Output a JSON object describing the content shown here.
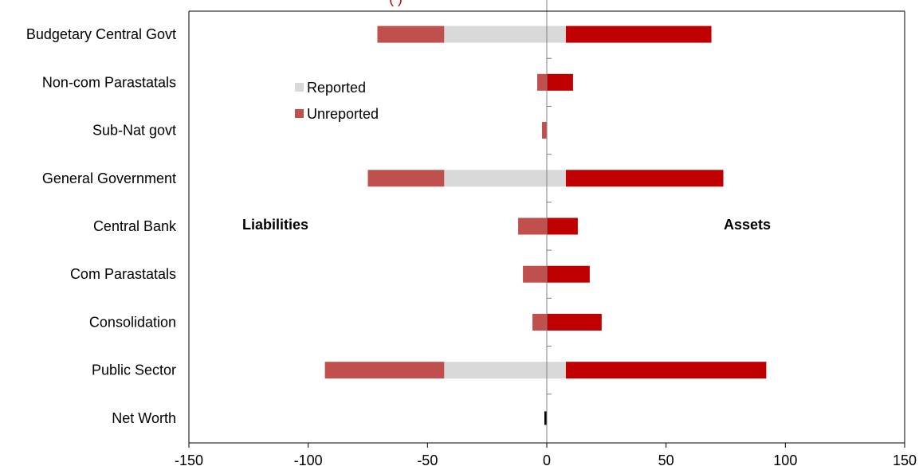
{
  "chart_data": {
    "type": "bar",
    "orientation": "horizontal-diverging",
    "title_fragment": "(                              )",
    "categories": [
      "Budgetary Central Govt",
      "Non-com Parastatals",
      "Sub-Nat govt",
      "General Government",
      "Central Bank",
      "Com Parastatals",
      "Consolidation",
      "Public Sector",
      "Net Worth"
    ],
    "series": [
      {
        "name": "Reported",
        "side": "liabilities",
        "color": "#d9d9d9",
        "values": [
          -43,
          0,
          0,
          -43,
          0,
          0,
          0,
          -43,
          0
        ]
      },
      {
        "name": "Unreported",
        "side": "liabilities",
        "color": "#c0504d",
        "values": [
          -28,
          -4,
          -2,
          -32,
          -12,
          -10,
          -6,
          -50,
          0
        ]
      },
      {
        "name": "Reported",
        "side": "assets",
        "color": "#d9d9d9",
        "values": [
          8,
          0,
          0,
          8,
          0,
          0,
          0,
          8,
          0
        ]
      },
      {
        "name": "Unreported",
        "side": "assets",
        "color": "#c00000",
        "values": [
          61,
          11,
          0,
          66,
          13,
          18,
          23,
          84,
          0
        ]
      },
      {
        "name": "Net Worth",
        "side": "net",
        "color": "#000000",
        "values": [
          0,
          0,
          0,
          0,
          0,
          0,
          0,
          0,
          -1
        ]
      }
    ],
    "legend": {
      "placement": "upper-left-inside",
      "items": [
        {
          "label": "Reported",
          "color": "#d9d9d9"
        },
        {
          "label": "Unreported",
          "color": "#c0504d"
        }
      ]
    },
    "annotations": {
      "left": "Liabilities",
      "right": "Assets"
    },
    "xlim": [
      -150,
      150
    ],
    "xticks": [
      "-150",
      "-100",
      "-50",
      "0",
      "50",
      "100",
      "150"
    ],
    "xtick_values": [
      -150,
      -100,
      -50,
      0,
      50,
      100,
      150
    ],
    "grid": false
  }
}
